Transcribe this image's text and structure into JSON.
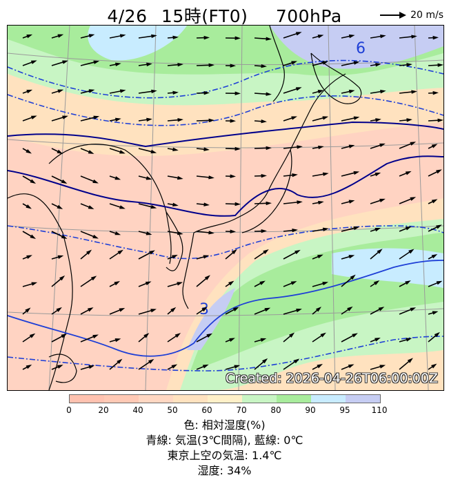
{
  "header": {
    "date": "4/26",
    "hour": "15時(FT0)",
    "level": "700hPa"
  },
  "wind_legend": {
    "label": "20 m/s"
  },
  "map": {
    "created_label": "Created: 2026-04-26T06:00:00Z",
    "contour_labels": [
      "6",
      "3"
    ],
    "colors": {
      "humidity_low": "#ffc2b0",
      "humidity_mid": "#ffe2bf",
      "humidity_70": "#c8f5c4",
      "humidity_80": "#a8ec9c",
      "humidity_90": "#c8ecff",
      "humidity_95": "#c6cdf3",
      "temperature_line": "#1e3fd6",
      "zero_line": "#00008b"
    }
  },
  "colorbar": {
    "ticks": [
      "0",
      "20",
      "40",
      "50",
      "60",
      "70",
      "80",
      "90",
      "95",
      "110"
    ],
    "colors": [
      "#ffc2b0",
      "#ffc9b5",
      "#ffd7c2",
      "#ffe2bf",
      "#fff0c8",
      "#c8f5c4",
      "#a8ec9c",
      "#c8ecff",
      "#c6cdf3"
    ]
  },
  "captions": {
    "color": "色: 相対湿度(%)",
    "lines": "青線: 気温(3℃間隔), 藍線: 0℃",
    "tokyo_temp": "東京上空の気温: 1.4℃",
    "humidity": "湿度: 34%"
  }
}
